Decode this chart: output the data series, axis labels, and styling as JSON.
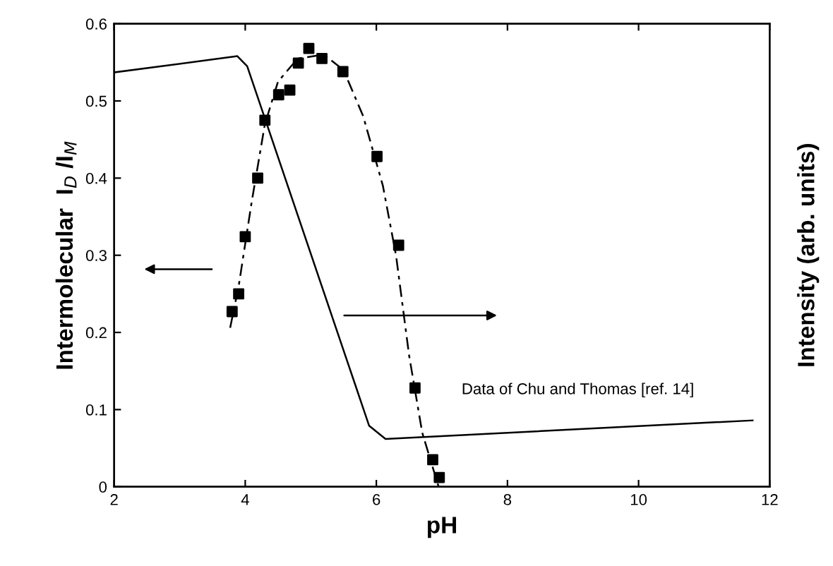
{
  "chart_data": {
    "type": "scatter",
    "xlabel": "pH",
    "ylabel": "Intermolecular  I$_{D}$ /I$_{M}$",
    "y2label": "Intensity (arb. units)",
    "xlim": [
      2,
      12
    ],
    "xticks": [
      2,
      4,
      6,
      8,
      10,
      12
    ],
    "ylim": [
      0,
      0.6
    ],
    "yticks": [
      0,
      0.1,
      0.2,
      0.3,
      0.4,
      0.5,
      0.6
    ],
    "grid": false,
    "legend": false,
    "annotations": [
      "Data of Chu and Thomas [ref. 14]"
    ],
    "series": [
      {
        "type": "line",
        "color": "#000000",
        "line_style": "solid",
        "marker": "none",
        "x": [
          2,
          3.88,
          4.03,
          5.89,
          6.14,
          11.74
        ],
        "values": [
          0.537,
          0.558,
          0.545,
          0.079,
          0.062,
          0.086
        ]
      },
      {
        "type": "line",
        "color": "#000000",
        "line_style": "dashed",
        "marker": "none",
        "x": [
          3.77,
          3.9,
          4.1,
          4.3,
          4.5,
          4.8,
          5.2,
          5.5,
          5.8,
          6.1,
          6.3,
          6.5,
          6.7,
          6.95
        ],
        "values": [
          0.206,
          0.26,
          0.37,
          0.47,
          0.525,
          0.555,
          0.56,
          0.54,
          0.48,
          0.39,
          0.3,
          0.17,
          0.07,
          0.0
        ]
      },
      {
        "color": "#000000",
        "marker": "square",
        "x": [
          3.8,
          3.9,
          4.0,
          4.19,
          4.3,
          4.51,
          4.68,
          4.81,
          4.97,
          5.17,
          5.49,
          6.01,
          6.34,
          6.59,
          6.86,
          6.96
        ],
        "values": [
          0.227,
          0.25,
          0.324,
          0.4,
          0.475,
          0.508,
          0.514,
          0.549,
          0.568,
          0.555,
          0.538,
          0.428,
          0.313,
          0.128,
          0.035,
          0.012
        ]
      }
    ]
  }
}
